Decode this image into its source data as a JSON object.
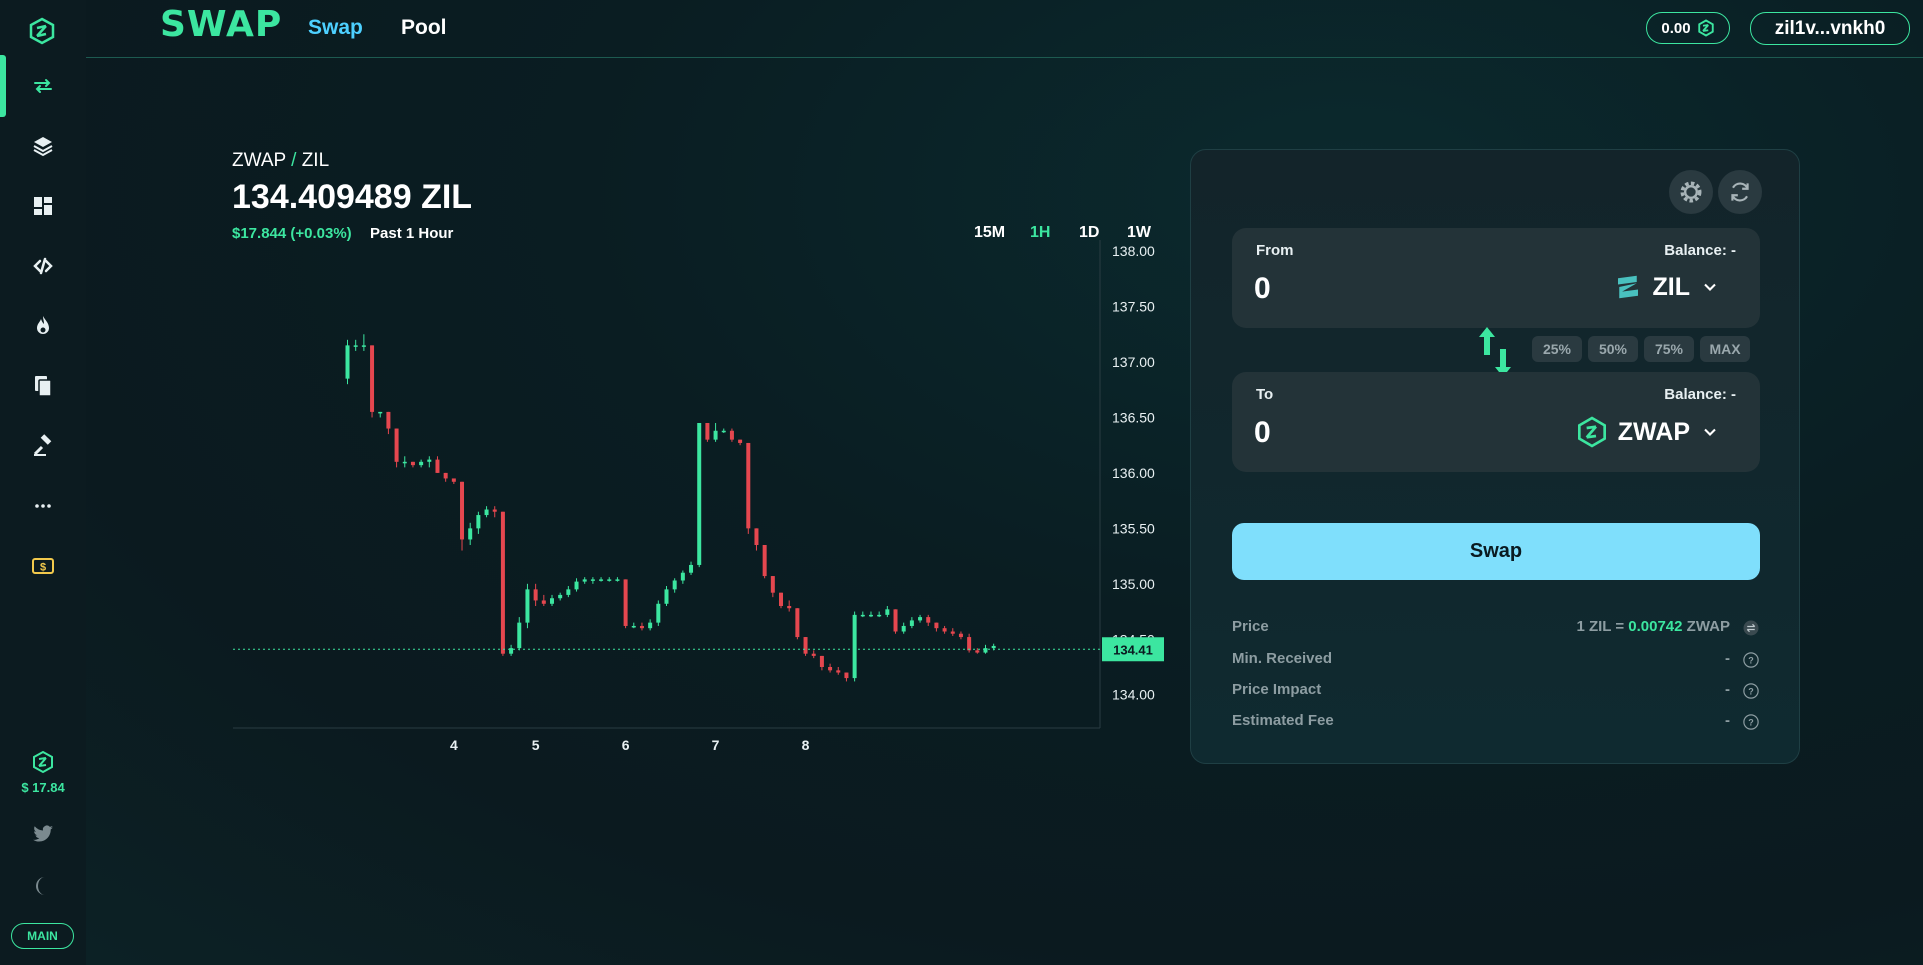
{
  "app": {
    "brand": "SWAP"
  },
  "nav": {
    "swap": "Swap",
    "pool": "Pool"
  },
  "wallet": {
    "balance": "0.00",
    "address": "zil1v...vnkh0"
  },
  "sidebar": {
    "items": [
      {
        "icon": "swap-arrows-icon"
      },
      {
        "icon": "layers-icon"
      },
      {
        "icon": "dashboard-icon"
      },
      {
        "icon": "link-icon"
      },
      {
        "icon": "flame-icon"
      },
      {
        "icon": "documents-icon"
      },
      {
        "icon": "gavel-icon"
      },
      {
        "icon": "more-icon"
      },
      {
        "icon": "dollar-icon"
      }
    ],
    "token_price": "$ 17.84",
    "network": "MAIN"
  },
  "chart_header": {
    "base": "ZWAP",
    "slash": " / ",
    "quote": "ZIL",
    "price": "134.409489 ZIL",
    "change": "$17.844 (+0.03%)",
    "period": "Past 1 Hour",
    "timeframes": [
      "15M",
      "1H",
      "1D",
      "1W"
    ],
    "active_timeframe": "1H"
  },
  "chart_data": {
    "type": "candlestick",
    "y_ticks": [
      "138.00",
      "137.50",
      "137.00",
      "136.50",
      "136.00",
      "135.50",
      "135.00",
      "134.50",
      "134.00"
    ],
    "x_ticks": [
      "4",
      "5",
      "6",
      "7",
      "8"
    ],
    "ylim": [
      133.7,
      138.1
    ],
    "current_label": "134.41",
    "current_value": 134.41,
    "candles": [
      {
        "x": 3.05,
        "o": 136.85,
        "h": 137.2,
        "l": 136.8,
        "c": 137.15
      },
      {
        "x": 3.1,
        "o": 137.15,
        "h": 137.2,
        "l": 137.1,
        "c": 137.15
      },
      {
        "x": 3.15,
        "o": 137.15,
        "h": 137.25,
        "l": 137.1,
        "c": 137.15
      },
      {
        "x": 3.2,
        "o": 137.15,
        "h": 137.15,
        "l": 136.5,
        "c": 136.55
      },
      {
        "x": 3.25,
        "o": 136.55,
        "h": 136.55,
        "l": 136.5,
        "c": 136.55
      },
      {
        "x": 3.3,
        "o": 136.55,
        "h": 136.55,
        "l": 136.35,
        "c": 136.4
      },
      {
        "x": 3.35,
        "o": 136.4,
        "h": 136.4,
        "l": 136.05,
        "c": 136.1
      },
      {
        "x": 3.4,
        "o": 136.1,
        "h": 136.15,
        "l": 136.05,
        "c": 136.1
      },
      {
        "x": 3.45,
        "o": 136.1,
        "h": 136.1,
        "l": 136.05,
        "c": 136.07
      },
      {
        "x": 3.5,
        "o": 136.07,
        "h": 136.12,
        "l": 136.05,
        "c": 136.1
      },
      {
        "x": 3.55,
        "o": 136.1,
        "h": 136.15,
        "l": 136.05,
        "c": 136.12
      },
      {
        "x": 3.6,
        "o": 136.12,
        "h": 136.15,
        "l": 136.0,
        "c": 136.0
      },
      {
        "x": 3.65,
        "o": 136.0,
        "h": 136.0,
        "l": 135.92,
        "c": 135.95
      },
      {
        "x": 3.7,
        "o": 135.95,
        "h": 135.95,
        "l": 135.9,
        "c": 135.92
      },
      {
        "x": 3.75,
        "o": 135.92,
        "h": 135.92,
        "l": 135.3,
        "c": 135.4
      },
      {
        "x": 3.8,
        "o": 135.4,
        "h": 135.55,
        "l": 135.35,
        "c": 135.5
      },
      {
        "x": 3.85,
        "o": 135.5,
        "h": 135.65,
        "l": 135.45,
        "c": 135.62
      },
      {
        "x": 3.9,
        "o": 135.62,
        "h": 135.7,
        "l": 135.6,
        "c": 135.67
      },
      {
        "x": 3.95,
        "o": 135.67,
        "h": 135.7,
        "l": 135.6,
        "c": 135.65
      },
      {
        "x": 4.0,
        "o": 135.65,
        "h": 135.65,
        "l": 134.35,
        "c": 134.37
      },
      {
        "x": 4.05,
        "o": 134.37,
        "h": 134.45,
        "l": 134.35,
        "c": 134.42
      },
      {
        "x": 4.1,
        "o": 134.42,
        "h": 134.7,
        "l": 134.4,
        "c": 134.65
      },
      {
        "x": 4.15,
        "o": 134.65,
        "h": 135.0,
        "l": 134.6,
        "c": 134.95
      },
      {
        "x": 4.2,
        "o": 134.95,
        "h": 135.0,
        "l": 134.8,
        "c": 134.85
      },
      {
        "x": 4.25,
        "o": 134.85,
        "h": 134.9,
        "l": 134.8,
        "c": 134.82
      },
      {
        "x": 4.3,
        "o": 134.82,
        "h": 134.9,
        "l": 134.8,
        "c": 134.87
      },
      {
        "x": 4.35,
        "o": 134.87,
        "h": 134.92,
        "l": 134.85,
        "c": 134.9
      },
      {
        "x": 4.4,
        "o": 134.9,
        "h": 134.98,
        "l": 134.88,
        "c": 134.95
      },
      {
        "x": 4.45,
        "o": 134.95,
        "h": 135.05,
        "l": 134.93,
        "c": 135.02
      },
      {
        "x": 4.5,
        "o": 135.02,
        "h": 135.06,
        "l": 135.0,
        "c": 135.04
      },
      {
        "x": 4.55,
        "o": 135.04,
        "h": 135.06,
        "l": 135.0,
        "c": 135.04
      },
      {
        "x": 4.6,
        "o": 135.04,
        "h": 135.06,
        "l": 135.02,
        "c": 135.04
      },
      {
        "x": 4.65,
        "o": 135.04,
        "h": 135.06,
        "l": 135.02,
        "c": 135.04
      },
      {
        "x": 4.7,
        "o": 135.04,
        "h": 135.06,
        "l": 135.02,
        "c": 135.04
      },
      {
        "x": 4.75,
        "o": 135.04,
        "h": 135.04,
        "l": 134.6,
        "c": 134.62
      },
      {
        "x": 4.8,
        "o": 134.62,
        "h": 134.65,
        "l": 134.6,
        "c": 134.62
      },
      {
        "x": 4.85,
        "o": 134.62,
        "h": 134.65,
        "l": 134.58,
        "c": 134.6
      },
      {
        "x": 4.9,
        "o": 134.6,
        "h": 134.68,
        "l": 134.58,
        "c": 134.65
      },
      {
        "x": 4.95,
        "o": 134.65,
        "h": 134.85,
        "l": 134.62,
        "c": 134.82
      },
      {
        "x": 5.0,
        "o": 134.82,
        "h": 134.98,
        "l": 134.8,
        "c": 134.95
      },
      {
        "x": 5.05,
        "o": 134.95,
        "h": 135.05,
        "l": 134.92,
        "c": 135.03
      },
      {
        "x": 5.1,
        "o": 135.03,
        "h": 135.12,
        "l": 135.0,
        "c": 135.1
      },
      {
        "x": 5.15,
        "o": 135.1,
        "h": 135.2,
        "l": 135.08,
        "c": 135.17
      },
      {
        "x": 5.2,
        "o": 135.17,
        "h": 136.45,
        "l": 135.15,
        "c": 136.45
      },
      {
        "x": 5.25,
        "o": 136.45,
        "h": 136.45,
        "l": 136.28,
        "c": 136.3
      },
      {
        "x": 5.3,
        "o": 136.3,
        "h": 136.45,
        "l": 136.28,
        "c": 136.38
      },
      {
        "x": 5.35,
        "o": 136.38,
        "h": 136.4,
        "l": 136.36,
        "c": 136.38
      },
      {
        "x": 5.4,
        "o": 136.38,
        "h": 136.4,
        "l": 136.28,
        "c": 136.3
      },
      {
        "x": 5.45,
        "o": 136.3,
        "h": 136.3,
        "l": 136.25,
        "c": 136.27
      },
      {
        "x": 5.5,
        "o": 136.27,
        "h": 136.27,
        "l": 135.45,
        "c": 135.5
      },
      {
        "x": 5.55,
        "o": 135.5,
        "h": 135.5,
        "l": 135.3,
        "c": 135.35
      },
      {
        "x": 5.6,
        "o": 135.35,
        "h": 135.35,
        "l": 135.05,
        "c": 135.07
      },
      {
        "x": 5.65,
        "o": 135.07,
        "h": 135.07,
        "l": 134.88,
        "c": 134.92
      },
      {
        "x": 5.7,
        "o": 134.92,
        "h": 134.92,
        "l": 134.78,
        "c": 134.8
      },
      {
        "x": 5.75,
        "o": 134.8,
        "h": 134.85,
        "l": 134.75,
        "c": 134.78
      },
      {
        "x": 5.8,
        "o": 134.78,
        "h": 134.78,
        "l": 134.5,
        "c": 134.52
      },
      {
        "x": 5.85,
        "o": 134.52,
        "h": 134.52,
        "l": 134.35,
        "c": 134.37
      },
      {
        "x": 5.9,
        "o": 134.37,
        "h": 134.4,
        "l": 134.33,
        "c": 134.35
      },
      {
        "x": 5.95,
        "o": 134.35,
        "h": 134.35,
        "l": 134.22,
        "c": 134.25
      },
      {
        "x": 6.0,
        "o": 134.25,
        "h": 134.28,
        "l": 134.2,
        "c": 134.22
      },
      {
        "x": 6.05,
        "o": 134.22,
        "h": 134.25,
        "l": 134.18,
        "c": 134.2
      },
      {
        "x": 6.1,
        "o": 134.2,
        "h": 134.2,
        "l": 134.12,
        "c": 134.15
      },
      {
        "x": 6.15,
        "o": 134.15,
        "h": 134.75,
        "l": 134.12,
        "c": 134.72
      },
      {
        "x": 6.2,
        "o": 134.72,
        "h": 134.75,
        "l": 134.7,
        "c": 134.72
      },
      {
        "x": 6.25,
        "o": 134.72,
        "h": 134.75,
        "l": 134.7,
        "c": 134.72
      },
      {
        "x": 6.3,
        "o": 134.72,
        "h": 134.75,
        "l": 134.7,
        "c": 134.72
      },
      {
        "x": 6.35,
        "o": 134.72,
        "h": 134.8,
        "l": 134.7,
        "c": 134.77
      },
      {
        "x": 6.4,
        "o": 134.77,
        "h": 134.77,
        "l": 134.55,
        "c": 134.57
      },
      {
        "x": 6.45,
        "o": 134.57,
        "h": 134.65,
        "l": 134.55,
        "c": 134.62
      },
      {
        "x": 6.5,
        "o": 134.62,
        "h": 134.7,
        "l": 134.6,
        "c": 134.67
      },
      {
        "x": 6.55,
        "o": 134.67,
        "h": 134.72,
        "l": 134.65,
        "c": 134.7
      },
      {
        "x": 6.6,
        "o": 134.7,
        "h": 134.72,
        "l": 134.62,
        "c": 134.65
      },
      {
        "x": 6.65,
        "o": 134.65,
        "h": 134.65,
        "l": 134.57,
        "c": 134.6
      },
      {
        "x": 6.7,
        "o": 134.6,
        "h": 134.62,
        "l": 134.55,
        "c": 134.57
      },
      {
        "x": 6.75,
        "o": 134.57,
        "h": 134.6,
        "l": 134.53,
        "c": 134.55
      },
      {
        "x": 6.8,
        "o": 134.55,
        "h": 134.57,
        "l": 134.5,
        "c": 134.52
      },
      {
        "x": 6.85,
        "o": 134.52,
        "h": 134.55,
        "l": 134.38,
        "c": 134.4
      },
      {
        "x": 6.9,
        "o": 134.4,
        "h": 134.42,
        "l": 134.37,
        "c": 134.38
      },
      {
        "x": 6.95,
        "o": 134.38,
        "h": 134.45,
        "l": 134.37,
        "c": 134.42
      },
      {
        "x": 7.0,
        "o": 134.42,
        "h": 134.46,
        "l": 134.4,
        "c": 134.44
      }
    ]
  },
  "swap_card": {
    "from": {
      "label": "From",
      "balance": "Balance: -",
      "amount": "0",
      "token": "ZIL"
    },
    "to": {
      "label": "To",
      "balance": "Balance: -",
      "amount": "0",
      "token": "ZWAP"
    },
    "percent_buttons": [
      "25%",
      "50%",
      "75%",
      "MAX"
    ],
    "swap_button": "Swap",
    "info": {
      "price_label": "Price",
      "price_prefix": "1 ZIL = ",
      "price_value": "0.00742",
      "price_suffix": " ZWAP",
      "min_received_label": "Min. Received",
      "min_received_value": "-",
      "price_impact_label": "Price Impact",
      "price_impact_value": "-",
      "fee_label": "Estimated Fee",
      "fee_value": "-"
    }
  },
  "colors": {
    "accent": "#3ce6a0",
    "up": "#3ce6a0",
    "down": "#e5474f",
    "button": "#7fdffc",
    "link": "#4dd0ff"
  }
}
